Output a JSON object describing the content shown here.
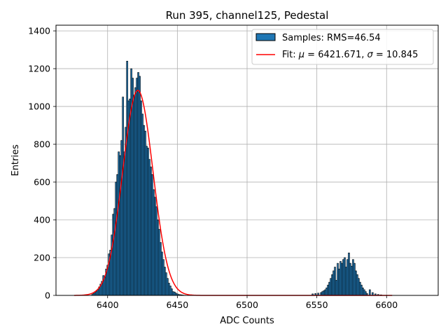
{
  "chart_data": {
    "type": "bar",
    "title": "Run 395, channel125, Pedestal",
    "xlabel": "ADC Counts",
    "ylabel": "Entries",
    "xlim": [
      6363,
      6637
    ],
    "ylim": [
      0,
      1430
    ],
    "xticks": [
      6400,
      6450,
      6500,
      6550,
      6600
    ],
    "yticks": [
      0,
      200,
      400,
      600,
      800,
      1000,
      1200,
      1400
    ],
    "grid": true,
    "legend_position": "top-right",
    "bar_color": "#1f77b4",
    "bar_edge_color": "#000000",
    "fit_color": "#ff0000",
    "legend": {
      "samples_label": "Samples: RMS=46.54",
      "fit_label_prefix": "Fit: ",
      "fit_mu_symbol": "μ",
      "fit_mu_value": " = 6421.671, ",
      "fit_sigma_symbol": "σ",
      "fit_sigma_value": " = 10.845"
    },
    "fit": {
      "mu": 6421.671,
      "sigma": 10.845,
      "amplitude": 1085,
      "x_range": [
        6376,
        6604
      ]
    },
    "bins": {
      "x": [
        6389,
        6390,
        6391,
        6392,
        6393,
        6394,
        6395,
        6396,
        6397,
        6398,
        6399,
        6400,
        6401,
        6402,
        6403,
        6404,
        6405,
        6406,
        6407,
        6408,
        6409,
        6410,
        6411,
        6412,
        6413,
        6414,
        6415,
        6416,
        6417,
        6418,
        6419,
        6420,
        6421,
        6422,
        6423,
        6424,
        6425,
        6426,
        6427,
        6428,
        6429,
        6430,
        6431,
        6432,
        6433,
        6434,
        6435,
        6436,
        6437,
        6438,
        6439,
        6440,
        6441,
        6442,
        6443,
        6444,
        6445,
        6446,
        6447,
        6448,
        6449,
        6450,
        6451,
        6452,
        6453,
        6454,
        6455,
        6456,
        6547,
        6549,
        6551,
        6553,
        6554,
        6555,
        6556,
        6557,
        6558,
        6559,
        6560,
        6561,
        6562,
        6563,
        6564,
        6565,
        6566,
        6567,
        6568,
        6569,
        6570,
        6571,
        6572,
        6573,
        6574,
        6575,
        6576,
        6577,
        6578,
        6579,
        6580,
        6581,
        6582,
        6583,
        6584,
        6585,
        6586,
        6588,
        6590,
        6592,
        6594,
        6596
      ],
      "counts": [
        5,
        10,
        15,
        22,
        30,
        45,
        60,
        75,
        105,
        95,
        140,
        160,
        220,
        240,
        320,
        430,
        460,
        600,
        640,
        760,
        740,
        820,
        1050,
        760,
        890,
        1240,
        1030,
        1040,
        1200,
        1150,
        1060,
        1100,
        1150,
        1180,
        1160,
        1030,
        960,
        900,
        870,
        790,
        780,
        720,
        680,
        640,
        560,
        520,
        470,
        400,
        350,
        280,
        230,
        190,
        150,
        120,
        90,
        65,
        50,
        35,
        20,
        18,
        12,
        8,
        5,
        4,
        3,
        2,
        1,
        1,
        8,
        10,
        12,
        15,
        20,
        25,
        30,
        40,
        55,
        70,
        90,
        110,
        130,
        150,
        80,
        170,
        140,
        180,
        170,
        190,
        200,
        150,
        190,
        225,
        170,
        155,
        190,
        170,
        130,
        110,
        90,
        70,
        55,
        40,
        30,
        20,
        10,
        30,
        15,
        8,
        5,
        3
      ]
    }
  }
}
